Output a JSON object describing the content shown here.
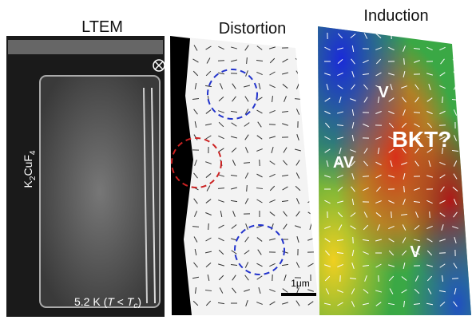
{
  "panels": [
    {
      "title": "LTEM",
      "formula": [
        "K",
        "2",
        "CuF",
        "4"
      ],
      "temperature": [
        "5.2 K (",
        "T",
        " < ",
        "T",
        "c",
        ")"
      ]
    },
    {
      "title": "Distortion",
      "scale_bar": "1μm"
    },
    {
      "title": "Induction",
      "labels": [
        "V",
        "AV",
        "BKT?",
        "V"
      ]
    }
  ]
}
